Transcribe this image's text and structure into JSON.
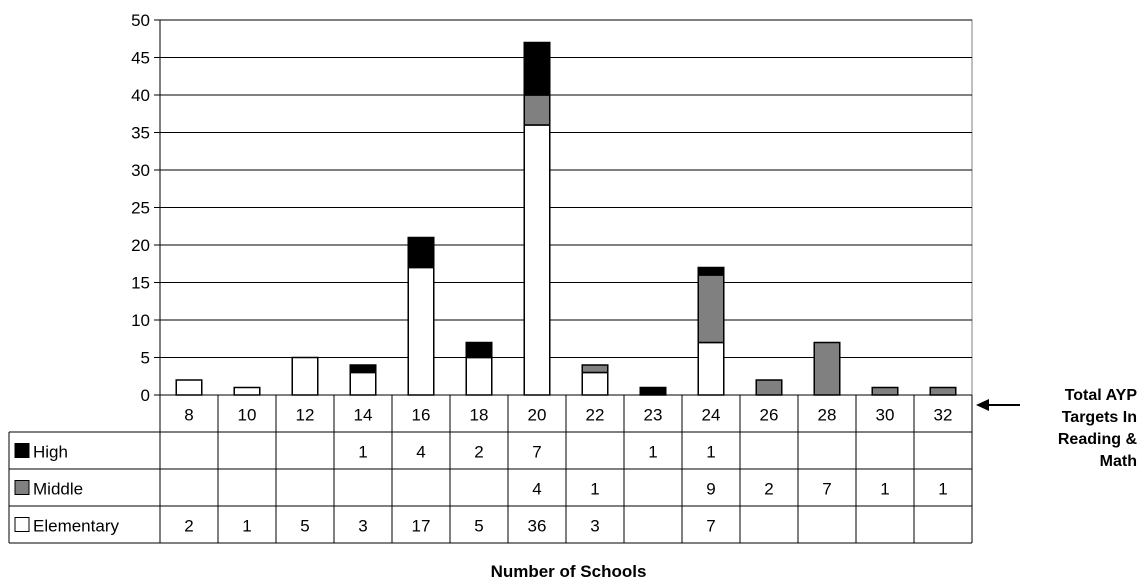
{
  "chart_data": {
    "type": "bar",
    "stacked": true,
    "xlabel": "Number of Schools",
    "ylabel": "",
    "ylim": [
      0,
      50
    ],
    "yticks": [
      0,
      5,
      10,
      15,
      20,
      25,
      30,
      35,
      40,
      45,
      50
    ],
    "grid": true,
    "categories": [
      "8",
      "10",
      "12",
      "14",
      "16",
      "18",
      "20",
      "22",
      "23",
      "24",
      "26",
      "28",
      "30",
      "32"
    ],
    "series": [
      {
        "name": "Elementary",
        "color": "#ffffff",
        "values": [
          2,
          1,
          5,
          3,
          17,
          5,
          36,
          3,
          null,
          7,
          null,
          null,
          null,
          null
        ]
      },
      {
        "name": "Middle",
        "color": "#808080",
        "values": [
          null,
          null,
          null,
          null,
          null,
          null,
          4,
          1,
          null,
          9,
          2,
          7,
          1,
          1
        ]
      },
      {
        "name": "High",
        "color": "#000000",
        "values": [
          null,
          null,
          null,
          1,
          4,
          2,
          7,
          null,
          1,
          1,
          null,
          null,
          null,
          null
        ]
      }
    ],
    "table_row_order": [
      "High",
      "Middle",
      "Elementary"
    ],
    "axis_note": [
      "Total AYP",
      "Targets In",
      "Reading &",
      "Math"
    ]
  }
}
